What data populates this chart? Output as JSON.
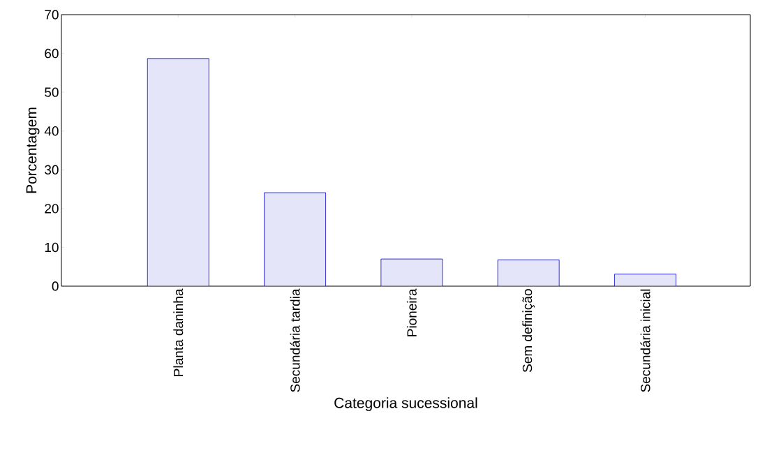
{
  "chart_data": {
    "type": "bar",
    "xlabel": "Categoria sucessional",
    "ylabel": "Porcentagem",
    "categories": [
      "Planta daninha",
      "Secundária tardia",
      "Pioneira",
      "Sem definição",
      "Secundária inicial"
    ],
    "values": [
      58.7,
      24.1,
      7.0,
      6.8,
      3.1
    ],
    "color": "#e5e5fa",
    "ylim": [
      0,
      70
    ],
    "yticks": [
      0,
      10,
      20,
      30,
      40,
      50,
      60,
      70
    ],
    "grid": false
  }
}
